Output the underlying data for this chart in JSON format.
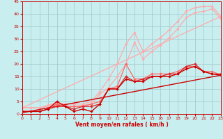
{
  "background_color": "#c8eef0",
  "grid_color": "#a0c8c8",
  "xlabel": "Vent moyen/en rafales ( km/h )",
  "xlabel_color": "#cc0000",
  "tick_color": "#cc0000",
  "xlim": [
    0,
    23
  ],
  "ylim": [
    0,
    45
  ],
  "yticks": [
    0,
    5,
    10,
    15,
    20,
    25,
    30,
    35,
    40,
    45
  ],
  "xticks": [
    0,
    1,
    2,
    3,
    4,
    5,
    6,
    7,
    8,
    9,
    10,
    11,
    12,
    13,
    14,
    15,
    16,
    17,
    18,
    19,
    20,
    21,
    22,
    23
  ],
  "lines": [
    {
      "x": [
        0,
        23
      ],
      "y": [
        2.5,
        39.0
      ],
      "color": "#ffaaaa",
      "lw": 0.9,
      "marker": null,
      "ms": 0,
      "zorder": 2
    },
    {
      "x": [
        0,
        1,
        2,
        3,
        4,
        5,
        6,
        7,
        8,
        9,
        10,
        11,
        12,
        13,
        14,
        15,
        16,
        17,
        18,
        19,
        20,
        21,
        22,
        23
      ],
      "y": [
        2.5,
        2.5,
        2.5,
        3.5,
        4.5,
        4.0,
        4.0,
        4.0,
        5.0,
        9.0,
        14.0,
        20.0,
        28.0,
        32.5,
        25.0,
        28.0,
        30.5,
        33.5,
        37.0,
        41.0,
        42.5,
        43.0,
        43.0,
        39.0
      ],
      "color": "#ffaaaa",
      "lw": 0.9,
      "marker": "D",
      "ms": 1.8,
      "zorder": 2
    },
    {
      "x": [
        0,
        1,
        2,
        3,
        4,
        5,
        6,
        7,
        8,
        9,
        10,
        11,
        12,
        13,
        14,
        15,
        16,
        17,
        18,
        19,
        20,
        21,
        22,
        23
      ],
      "y": [
        2.5,
        2.5,
        2.5,
        3.0,
        4.0,
        3.0,
        3.0,
        3.5,
        4.0,
        8.0,
        10.5,
        15.0,
        20.0,
        28.5,
        22.0,
        25.0,
        27.5,
        30.5,
        34.0,
        38.5,
        40.5,
        41.0,
        42.0,
        38.0
      ],
      "color": "#ffaaaa",
      "lw": 0.9,
      "marker": "D",
      "ms": 1.8,
      "zorder": 2
    },
    {
      "x": [
        0,
        23
      ],
      "y": [
        0.5,
        15.5
      ],
      "color": "#cc0000",
      "lw": 1.0,
      "marker": null,
      "ms": 0,
      "zorder": 3
    },
    {
      "x": [
        0,
        1,
        2,
        3,
        4,
        5,
        6,
        7,
        8,
        9,
        10,
        11,
        12,
        13,
        14,
        15,
        16,
        17,
        18,
        19,
        20,
        21,
        22,
        23
      ],
      "y": [
        1,
        1,
        1,
        2,
        4,
        3,
        3,
        3,
        4,
        5,
        10,
        11,
        20,
        14,
        14,
        16,
        16,
        16,
        17,
        19,
        19,
        17,
        17,
        15.5
      ],
      "color": "#ff6666",
      "lw": 0.9,
      "marker": "D",
      "ms": 1.8,
      "zorder": 3
    },
    {
      "x": [
        0,
        1,
        2,
        3,
        4,
        5,
        6,
        7,
        8,
        9,
        10,
        11,
        12,
        13,
        14,
        15,
        16,
        17,
        18,
        19,
        20,
        21,
        22,
        23
      ],
      "y": [
        1,
        1,
        1,
        2,
        3,
        3,
        2,
        3,
        3,
        4,
        10,
        10,
        15,
        13,
        14,
        15,
        15,
        16,
        16,
        19,
        20,
        17,
        16,
        16
      ],
      "color": "#dd2222",
      "lw": 0.9,
      "marker": "D",
      "ms": 1.8,
      "zorder": 3
    },
    {
      "x": [
        0,
        1,
        2,
        3,
        4,
        5,
        6,
        7,
        8,
        9,
        10,
        11,
        12,
        13,
        14,
        15,
        16,
        17,
        18,
        19,
        20,
        21,
        22,
        23
      ],
      "y": [
        1,
        1,
        1,
        2,
        5,
        3,
        1,
        2,
        1,
        4,
        10,
        10,
        14,
        13,
        13,
        15,
        15,
        15,
        16,
        18,
        19,
        17,
        16,
        15.5
      ],
      "color": "#cc0000",
      "lw": 1.0,
      "marker": "D",
      "ms": 1.8,
      "zorder": 4
    }
  ]
}
